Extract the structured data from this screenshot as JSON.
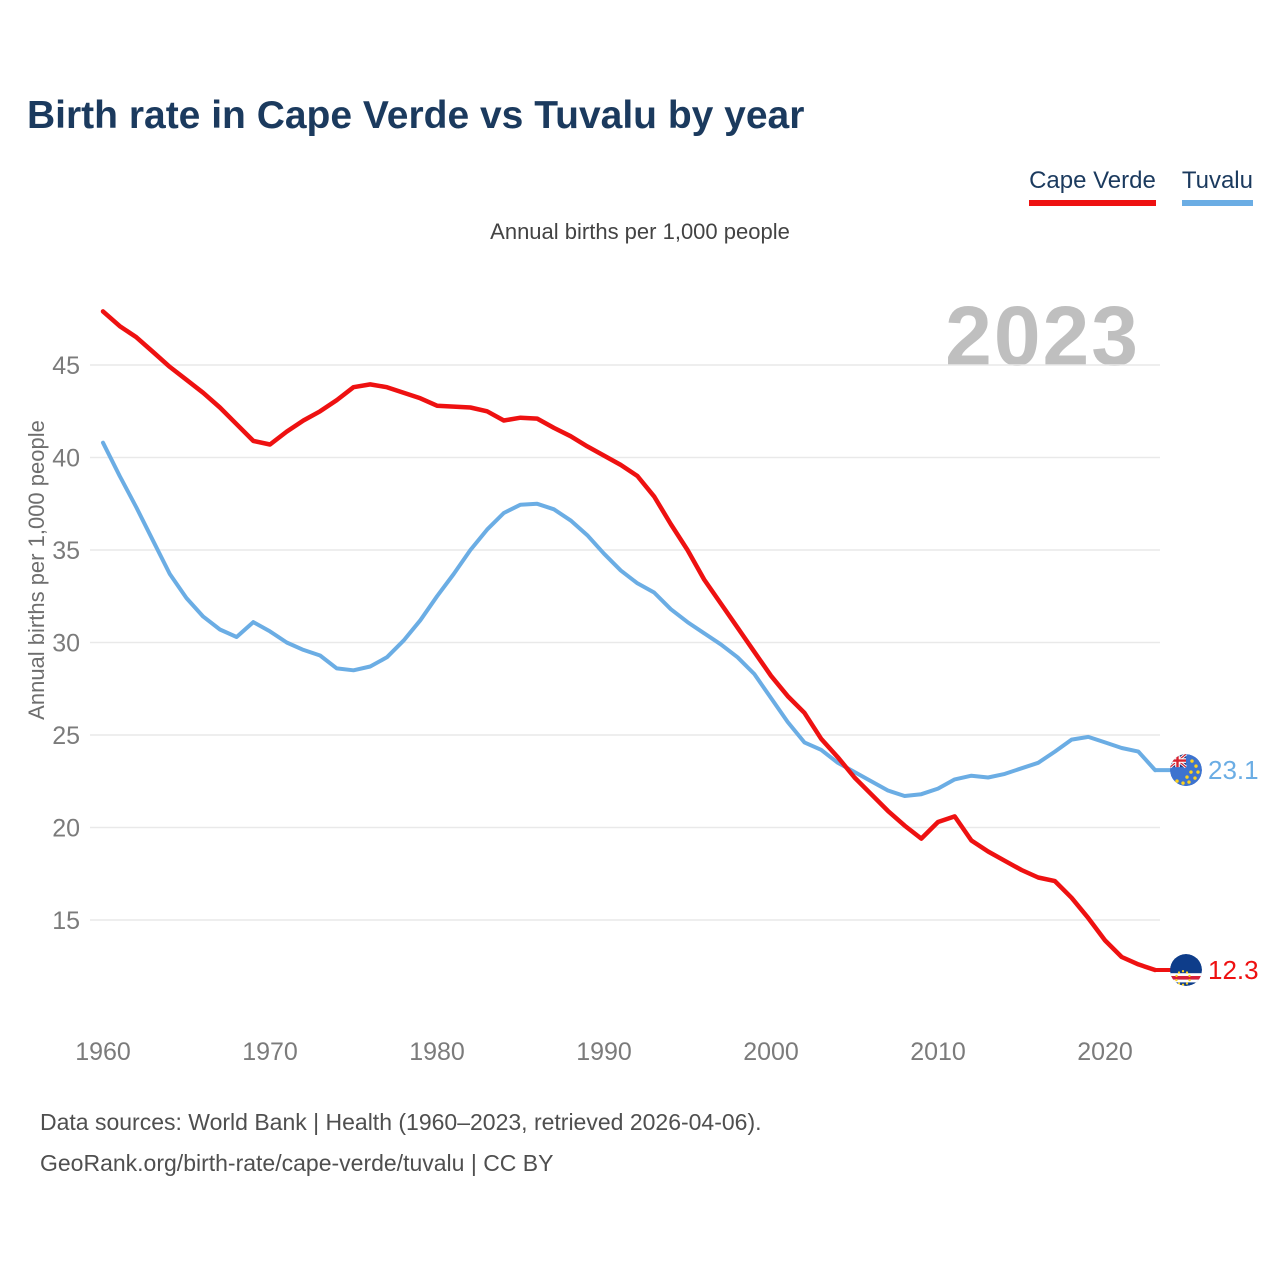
{
  "title": "Birth rate in Cape Verde vs Tuvalu by year",
  "subtitle": "Annual births per 1,000 people",
  "y_axis_title": "Annual births per 1,000 people",
  "watermark": "2023",
  "colors": {
    "title": "#1b3a5e",
    "cape_verde": "#ee1111",
    "tuvalu": "#6bade4",
    "watermark": "#bfbfbf"
  },
  "legend": {
    "items": [
      {
        "label": "Cape Verde",
        "color": "#ee1111"
      },
      {
        "label": "Tuvalu",
        "color": "#6bade4"
      }
    ]
  },
  "end_labels": [
    {
      "series": "Cape Verde",
      "text": "12.3"
    },
    {
      "series": "Tuvalu",
      "text": "23.1"
    }
  ],
  "footer": {
    "line1": "Data sources: World Bank | Health (1960–2023, retrieved 2026-04-06).",
    "line2": "GeoRank.org/birth-rate/cape-verde/tuvalu | CC BY"
  },
  "chart_data": {
    "type": "line",
    "title": "Birth rate in Cape Verde vs Tuvalu by year",
    "subtitle": "Annual births per 1,000 people",
    "ylabel": "Annual births per 1,000 people",
    "xlabel": "",
    "grid": true,
    "legend_position": "top-right",
    "xlim": [
      1960,
      2023
    ],
    "ylim": [
      11,
      49
    ],
    "x_ticks": [
      1960,
      1970,
      1980,
      1990,
      2000,
      2010,
      2020
    ],
    "y_ticks": [
      15,
      20,
      25,
      30,
      35,
      40,
      45
    ],
    "x": [
      1960,
      1961,
      1962,
      1963,
      1964,
      1965,
      1966,
      1967,
      1968,
      1969,
      1970,
      1971,
      1972,
      1973,
      1974,
      1975,
      1976,
      1977,
      1978,
      1979,
      1980,
      1981,
      1982,
      1983,
      1984,
      1985,
      1986,
      1987,
      1988,
      1989,
      1990,
      1991,
      1992,
      1993,
      1994,
      1995,
      1996,
      1997,
      1998,
      1999,
      2000,
      2001,
      2002,
      2003,
      2004,
      2005,
      2006,
      2007,
      2008,
      2009,
      2010,
      2011,
      2012,
      2013,
      2014,
      2015,
      2016,
      2017,
      2018,
      2019,
      2020,
      2021,
      2022,
      2023
    ],
    "series": [
      {
        "name": "Cape Verde",
        "color": "#ee1111",
        "values": [
          47.9,
          47.1,
          46.5,
          45.7,
          44.9,
          44.2,
          43.5,
          42.7,
          41.8,
          40.9,
          40.7,
          41.4,
          42.0,
          42.5,
          43.1,
          43.8,
          43.95,
          43.8,
          43.5,
          43.2,
          42.8,
          42.75,
          42.7,
          42.5,
          42.0,
          42.15,
          42.1,
          41.6,
          41.15,
          40.6,
          40.1,
          39.6,
          39.0,
          37.9,
          36.4,
          35.0,
          33.4,
          32.1,
          30.8,
          29.5,
          28.2,
          27.1,
          26.2,
          24.8,
          23.8,
          22.7,
          21.8,
          20.9,
          20.1,
          19.4,
          20.3,
          20.6,
          19.3,
          18.7,
          18.2,
          17.7,
          17.3,
          17.1,
          16.2,
          15.1,
          13.9,
          13.0,
          12.6,
          12.3
        ]
      },
      {
        "name": "Tuvalu",
        "color": "#6bade4",
        "values": [
          40.8,
          39.0,
          37.3,
          35.5,
          33.7,
          32.4,
          31.4,
          30.7,
          30.3,
          31.1,
          30.6,
          30.0,
          29.6,
          29.3,
          28.6,
          28.5,
          28.7,
          29.2,
          30.1,
          31.2,
          32.5,
          33.7,
          35.0,
          36.1,
          37.0,
          37.45,
          37.5,
          37.2,
          36.6,
          35.8,
          34.8,
          33.9,
          33.2,
          32.7,
          31.8,
          31.1,
          30.5,
          29.9,
          29.2,
          28.3,
          27.0,
          25.7,
          24.6,
          24.2,
          23.5,
          23.0,
          22.5,
          22.0,
          21.7,
          21.8,
          22.1,
          22.6,
          22.8,
          22.7,
          22.9,
          23.2,
          23.5,
          24.1,
          24.75,
          24.9,
          24.6,
          24.3,
          24.1,
          23.1
        ]
      }
    ]
  }
}
